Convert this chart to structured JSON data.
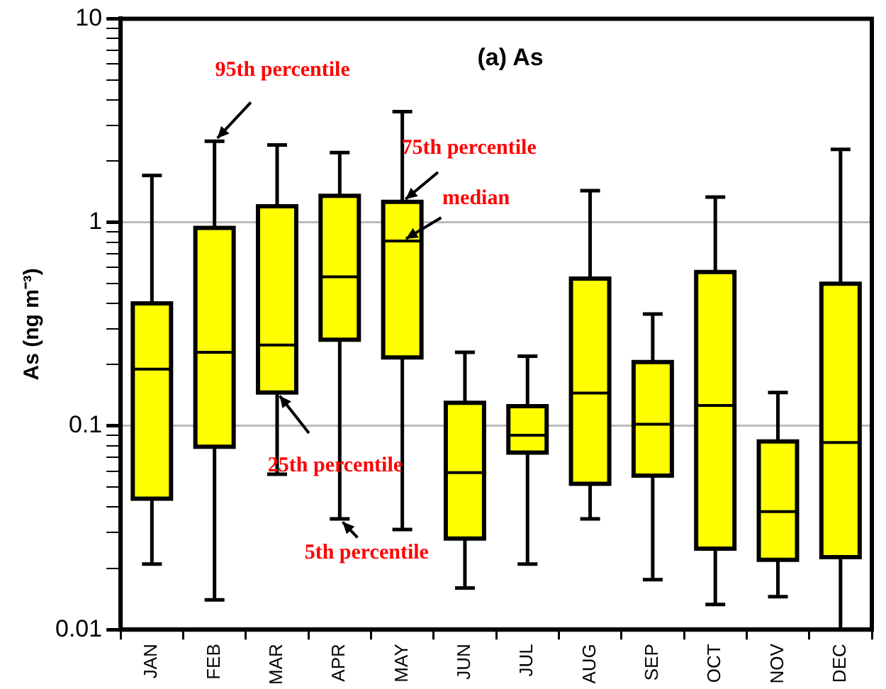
{
  "chart_data": {
    "type": "box",
    "title": "(a) As",
    "ylabel": "As (ng m⁻³)",
    "categories": [
      "JAN",
      "FEB",
      "MAR",
      "APR",
      "MAY",
      "JUN",
      "JUL",
      "AUG",
      "SEP",
      "OCT",
      "NOV",
      "DEC"
    ],
    "color": "#ffff00",
    "boxes": [
      {
        "low": 0.021,
        "q1": 0.044,
        "median": 0.19,
        "q3": 0.4,
        "high": 1.7
      },
      {
        "low": 0.014,
        "q1": 0.079,
        "median": 0.23,
        "q3": 0.94,
        "high": 2.5
      },
      {
        "low": 0.058,
        "q1": 0.146,
        "median": 0.25,
        "q3": 1.2,
        "high": 2.4
      },
      {
        "low": 0.035,
        "q1": 0.265,
        "median": 0.54,
        "q3": 1.35,
        "high": 2.2
      },
      {
        "low": 0.031,
        "q1": 0.217,
        "median": 0.81,
        "q3": 1.26,
        "high": 3.5
      },
      {
        "low": 0.016,
        "q1": 0.028,
        "median": 0.059,
        "q3": 0.13,
        "high": 0.23
      },
      {
        "low": 0.021,
        "q1": 0.074,
        "median": 0.09,
        "q3": 0.125,
        "high": 0.22
      },
      {
        "low": 0.035,
        "q1": 0.052,
        "median": 0.145,
        "q3": 0.53,
        "high": 1.43
      },
      {
        "low": 0.0176,
        "q1": 0.057,
        "median": 0.102,
        "q3": 0.206,
        "high": 0.355
      },
      {
        "low": 0.0133,
        "q1": 0.025,
        "median": 0.126,
        "q3": 0.57,
        "high": 1.33
      },
      {
        "low": 0.0145,
        "q1": 0.022,
        "median": 0.038,
        "q3": 0.084,
        "high": 0.146
      },
      {
        "low": 0.01,
        "q1": 0.0227,
        "median": 0.083,
        "q3": 0.5,
        "high": 2.28
      }
    ],
    "log": "y",
    "ylim": [
      0.01,
      10
    ],
    "yticks": [
      0.01,
      {
        "value": 0.02,
        "label": null
      },
      {
        "value": 0.03,
        "label": null
      },
      {
        "value": 0.04,
        "label": null
      },
      {
        "value": 0.05,
        "label": null
      },
      {
        "value": 0.06,
        "label": null
      },
      {
        "value": 0.07,
        "label": null
      },
      {
        "value": 0.08,
        "label": null
      },
      {
        "value": 0.09,
        "label": null
      },
      0.1,
      {
        "value": 0.2,
        "label": null
      },
      {
        "value": 0.3,
        "label": null
      },
      {
        "value": 0.4,
        "label": null
      },
      {
        "value": 0.5,
        "label": null
      },
      {
        "value": 0.6,
        "label": null
      },
      {
        "value": 0.7,
        "label": null
      },
      {
        "value": 0.8,
        "label": null
      },
      {
        "value": 0.9,
        "label": null
      },
      1,
      {
        "value": 2,
        "label": null
      },
      {
        "value": 3,
        "label": null
      },
      {
        "value": 4,
        "label": null
      },
      {
        "value": 5,
        "label": null
      },
      {
        "value": 6,
        "label": null
      },
      {
        "value": 7,
        "label": null
      },
      {
        "value": 8,
        "label": null
      },
      {
        "value": 9,
        "label": null
      },
      10
    ],
    "grid": "y",
    "annotations": [
      {
        "text": "95th percentile",
        "x": "FEB",
        "y": 2.5
      },
      {
        "text": "75th percentile",
        "x": "MAY",
        "y": 1.26
      },
      {
        "text": "median",
        "x": "MAY",
        "y": 0.81
      },
      {
        "text": "25th percentile",
        "x": "MAR",
        "y": 0.146
      },
      {
        "text": "5th percentile",
        "x": "APR",
        "y": 0.035
      }
    ]
  }
}
